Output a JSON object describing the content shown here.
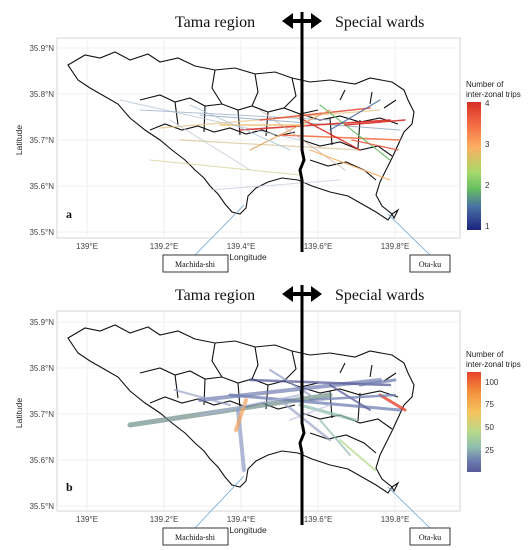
{
  "panels": [
    {
      "letter": "a",
      "region_left": "Tama region",
      "region_right": "Special wards",
      "xlabel": "Longitude",
      "ylabel": "Latitude",
      "x_ticks": [
        "139°E",
        "139.2°E",
        "139.4°E",
        "139.6°E",
        "139.8°E"
      ],
      "y_ticks": [
        "35.9°N",
        "35.8°N",
        "35.7°N",
        "35.6°N",
        "35.5°N"
      ],
      "legend": {
        "title_line1": "Number of",
        "title_line2": "inter-zonal trips",
        "ticks": [
          "4",
          "3",
          "2",
          "1"
        ],
        "colors": [
          "#d73027",
          "#f46d43",
          "#fdae61",
          "#a6d96a",
          "#66bd63",
          "#4a6fa5",
          "#1a237e"
        ]
      },
      "callout_left": "Machida-shi",
      "callout_right": "Ota-ku"
    },
    {
      "letter": "b",
      "region_left": "Tama region",
      "region_right": "Special wards",
      "xlabel": "Longitude",
      "ylabel": "Latitude",
      "x_ticks": [
        "139°E",
        "139.2°E",
        "139.4°E",
        "139.6°E",
        "139.8°E"
      ],
      "y_ticks": [
        "35.9°N",
        "35.8°N",
        "35.7°N",
        "35.6°N",
        "35.5°N"
      ],
      "legend": {
        "title_line1": "Number of",
        "title_line2": "inter-zonal trips",
        "ticks": [
          "100",
          "75",
          "50",
          "25"
        ],
        "colors": [
          "#e8422c",
          "#f2913d",
          "#f7c35e",
          "#b5d98b",
          "#8fbfae",
          "#6f7fb0",
          "#5a5a9a"
        ]
      },
      "callout_left": "Machida-shi",
      "callout_right": "Ota-ku"
    }
  ],
  "chart_data": [
    {
      "type": "map",
      "x_ticks": [
        139.0,
        139.2,
        139.4,
        139.6,
        139.8
      ],
      "y_ticks": [
        35.9,
        35.8,
        35.7,
        35.6,
        35.5
      ],
      "xlim": [
        138.93,
        139.97
      ],
      "ylim": [
        35.47,
        35.94
      ],
      "colorbar_range": [
        1,
        4
      ]
    },
    {
      "type": "map",
      "x_ticks": [
        139.0,
        139.2,
        139.4,
        139.6,
        139.8
      ],
      "y_ticks": [
        35.9,
        35.8,
        35.7,
        35.6,
        35.5
      ],
      "xlim": [
        138.93,
        139.97
      ],
      "ylim": [
        35.47,
        35.94
      ],
      "colorbar_range": [
        1,
        115
      ]
    }
  ]
}
